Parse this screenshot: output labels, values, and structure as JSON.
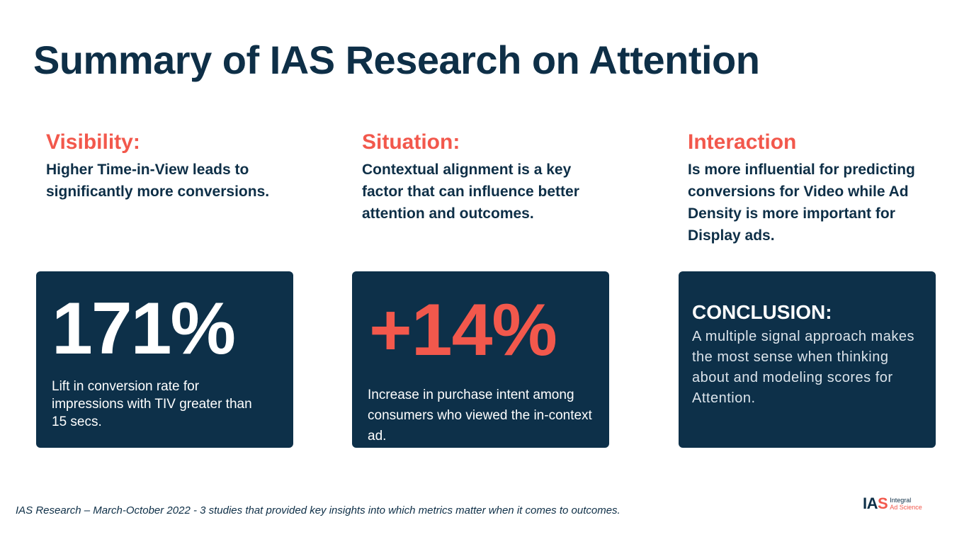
{
  "slide": {
    "title": "Summary of IAS Research on Attention"
  },
  "columns": [
    {
      "heading": "Visibility:",
      "body": "Higher Time-in-View leads to significantly more conversions."
    },
    {
      "heading": "Situation:",
      "body": "Contextual alignment is a key factor that can influence better attention and outcomes."
    },
    {
      "heading": "Interaction",
      "body": "Is more influential for predicting conversions for Video while Ad Density is more important for Display ads."
    }
  ],
  "cards": {
    "visibility": {
      "stat": "171%",
      "caption": "Lift in conversion rate for impressions with TIV greater than 15 secs."
    },
    "situation": {
      "stat": "+14%",
      "caption": "Increase in purchase intent among consumers who viewed the in-context ad."
    },
    "conclusion": {
      "title": "CONCLUSION:",
      "text": "A multiple signal approach makes the most sense when thinking about and modeling scores for Attention."
    }
  },
  "footer": {
    "note": "IAS Research – March-October  2022 - 3 studies that provided key insights into which metrics matter when it comes to outcomes.",
    "logo_mark_ia": "IA",
    "logo_mark_s": "S",
    "logo_word_1": "Integral",
    "logo_word_2": "Ad Science"
  },
  "colors": {
    "navy": "#0e2f47",
    "card": "#0d3049",
    "accent": "#f2584c",
    "white": "#ffffff"
  }
}
